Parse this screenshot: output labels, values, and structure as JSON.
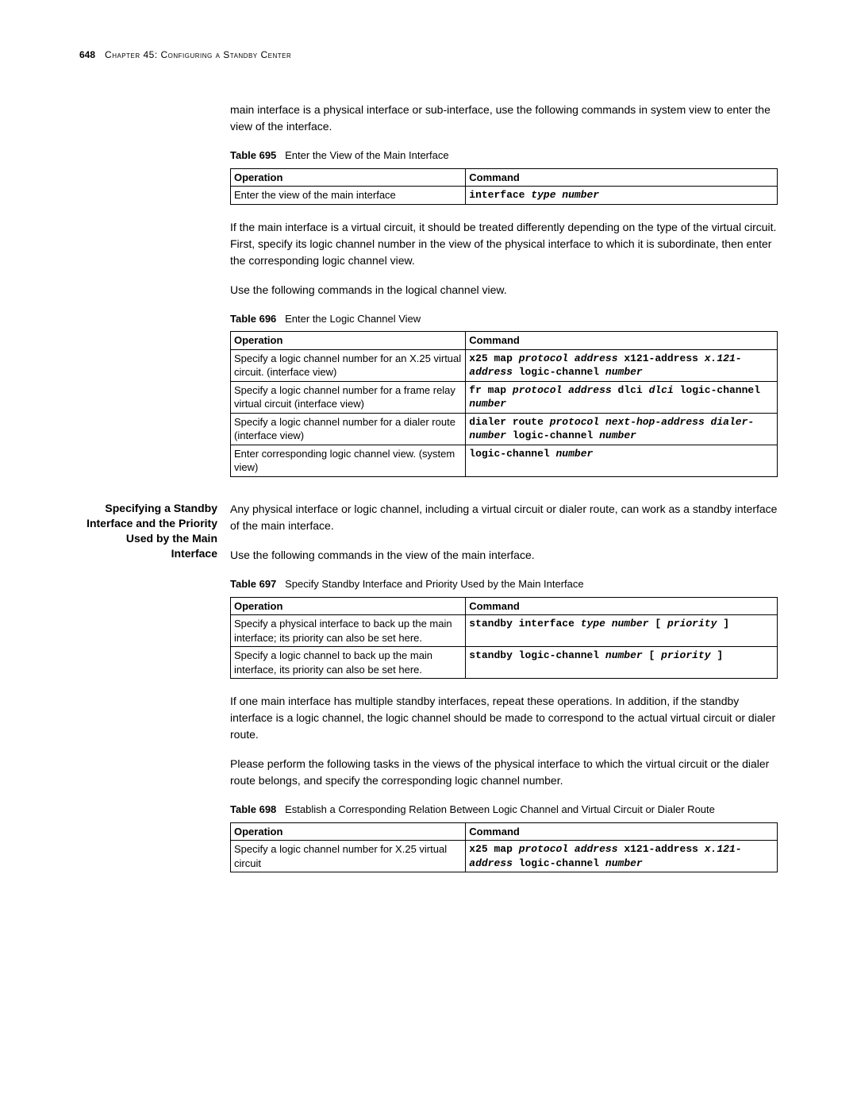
{
  "header": {
    "page_number": "648",
    "chapter_label": "Chapter 45: Configuring a Standby Center"
  },
  "p1": "main interface is a physical interface or sub-interface, use the following commands in system view to enter the view of the interface.",
  "table695": {
    "label": "Table 695",
    "caption": "Enter the View of the Main Interface",
    "col_op": "Operation",
    "col_cmd": "Command",
    "rows": [
      {
        "op": "Enter the view of the main interface",
        "cmd_html": "<span class='kw'>interface</span> <span class='arg'>type number</span>"
      }
    ]
  },
  "p2": "If the main interface is a virtual circuit, it should be treated differently depending on the type of the virtual circuit. First, specify its logic channel number in the view of the physical interface to which it is subordinate, then enter the corresponding logic channel view.",
  "p3": "Use the following commands in the logical channel view.",
  "table696": {
    "label": "Table 696",
    "caption": "Enter the Logic Channel View",
    "col_op": "Operation",
    "col_cmd": "Command",
    "rows": [
      {
        "op": "Specify a logic channel number for an X.25 virtual circuit. (interface view)",
        "cmd_html": "<span class='kw'>x25 map</span> <span class='arg'>protocol address</span> <span class='kw'>x121-address</span> <span class='arg'>x.121-address</span> <span class='kw'>logic-channel</span> <span class='arg'>number</span>"
      },
      {
        "op": "Specify a logic channel number for a frame relay virtual circuit (interface view)",
        "cmd_html": "<span class='kw'>fr map</span> <span class='arg'>protocol address</span> <span class='kw'>dlci</span> <span class='arg'>dlci</span> <span class='kw'>logic-channel</span> <span class='arg'>number</span>"
      },
      {
        "op": "Specify a logic channel number for a dialer route (interface view)",
        "cmd_html": "<span class='kw'>dialer route</span> <span class='arg'>protocol</span> <span class='arg'>next-hop-address dialer-number</span> <span class='kw'>logic-channel</span> <span class='arg'>number</span>"
      },
      {
        "op": "Enter corresponding logic channel view. (system view)",
        "cmd_html": "<span class='kw'>logic-channel</span> <span class='arg'>number</span>"
      }
    ]
  },
  "section2": {
    "heading": "Specifying a Standby Interface and the Priority Used by the Main Interface",
    "p4": "Any physical interface or logic channel, including a virtual circuit or dialer route, can work as a standby interface of the main interface.",
    "p5": "Use the following commands in the view of the main interface."
  },
  "table697": {
    "label": "Table 697",
    "caption": "Specify Standby Interface and Priority Used by the Main Interface",
    "col_op": "Operation",
    "col_cmd": "Command",
    "rows": [
      {
        "op": "Specify a physical interface to back up the main interface; its priority can also be set here.",
        "cmd_html": "<span class='kw'>standby interface</span> <span class='arg'>type number</span> <span class='kw'>[</span> <span class='arg'>priority</span> <span class='kw'>]</span>"
      },
      {
        "op": "Specify a logic channel to back up the main interface, its priority can also be set here.",
        "cmd_html": "<span class='kw'>standby logic-channel</span> <span class='arg'>number</span> <span class='kw'>[</span> <span class='arg'>priority</span> <span class='kw'>]</span>"
      }
    ]
  },
  "p6": "If one main interface has multiple standby interfaces, repeat these operations. In addition, if the standby interface is a logic channel, the logic channel should be made to correspond to the actual virtual circuit or dialer route.",
  "p7": "Please perform the following tasks in the views of the physical interface to which the virtual circuit or the dialer route belongs, and specify the corresponding logic channel number.",
  "table698": {
    "label": "Table 698",
    "caption": "Establish a Corresponding Relation Between Logic Channel and Virtual Circuit or Dialer Route",
    "col_op": "Operation",
    "col_cmd": "Command",
    "rows": [
      {
        "op": "Specify a logic channel number for X.25 virtual circuit",
        "cmd_html": "<span class='kw'>x25 map</span> <span class='arg'>protocol address</span> <span class='kw'>x121-address</span> <span class='arg'>x.121-address</span> <span class='kw'>logic-channel</span> <span class='arg'>number</span>"
      }
    ]
  }
}
